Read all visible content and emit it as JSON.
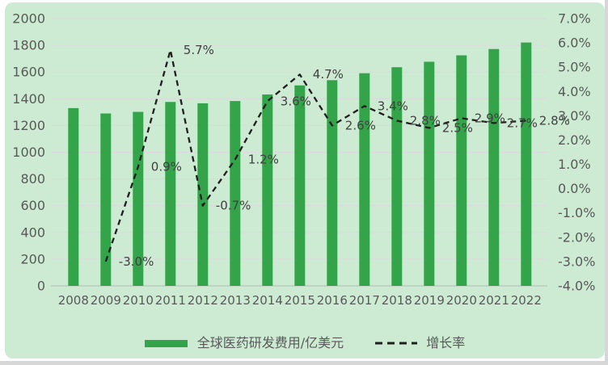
{
  "chart_data": {
    "type": "combo-bar-line",
    "categories": [
      "2008",
      "2009",
      "2010",
      "2011",
      "2012",
      "2013",
      "2014",
      "2015",
      "2016",
      "2017",
      "2018",
      "2019",
      "2020",
      "2021",
      "2022"
    ],
    "series": [
      {
        "name": "全球医药研发费用/亿美元",
        "type": "bar",
        "axis": "left",
        "values": [
          1330,
          1290,
          1302,
          1376,
          1366,
          1383,
          1432,
          1500,
          1539,
          1591,
          1636,
          1677,
          1725,
          1772,
          1821
        ]
      },
      {
        "name": "增长率",
        "type": "line",
        "line_style": "dashed",
        "axis": "right",
        "values": [
          null,
          -3.0,
          0.9,
          5.7,
          -0.7,
          1.2,
          3.6,
          4.7,
          2.6,
          3.4,
          2.8,
          2.5,
          2.9,
          2.7,
          2.8
        ],
        "point_labels": [
          null,
          "-3.0%",
          "0.9%",
          "5.7%",
          "-0.7%",
          "1.2%",
          "3.6%",
          "4.7%",
          "2.6%",
          "3.4%",
          "2.8%",
          "2.5%",
          "2.9%",
          "2.7%",
          "2.8%"
        ]
      }
    ],
    "left_axis": {
      "min": 0,
      "max": 2000,
      "step": 200,
      "tick_labels": [
        "2000",
        "1800",
        "1600",
        "1400",
        "1200",
        "1000",
        "800",
        "600",
        "400",
        "200",
        "0"
      ]
    },
    "right_axis": {
      "min": -4,
      "max": 7,
      "step": 1,
      "tick_labels": [
        "7.0%",
        "6.0%",
        "5.0%",
        "4.0%",
        "3.0%",
        "2.0%",
        "1.0%",
        "0.0%",
        "-1.0%",
        "-2.0%",
        "-3.0%",
        "-4.0%"
      ]
    },
    "grid": true,
    "legend_position": "bottom",
    "title": ""
  },
  "legend": {
    "bar_label": "全球医药研发费用/亿美元",
    "line_label": "增长率"
  },
  "colors": {
    "bar": "#34a44a",
    "line": "#1f1f1f",
    "card_bg": "#cdebd3",
    "gridline": "#ddd9e0",
    "axis_line": "#b3bdb6",
    "axis_text": "#595959",
    "data_label_text": "#404040"
  }
}
